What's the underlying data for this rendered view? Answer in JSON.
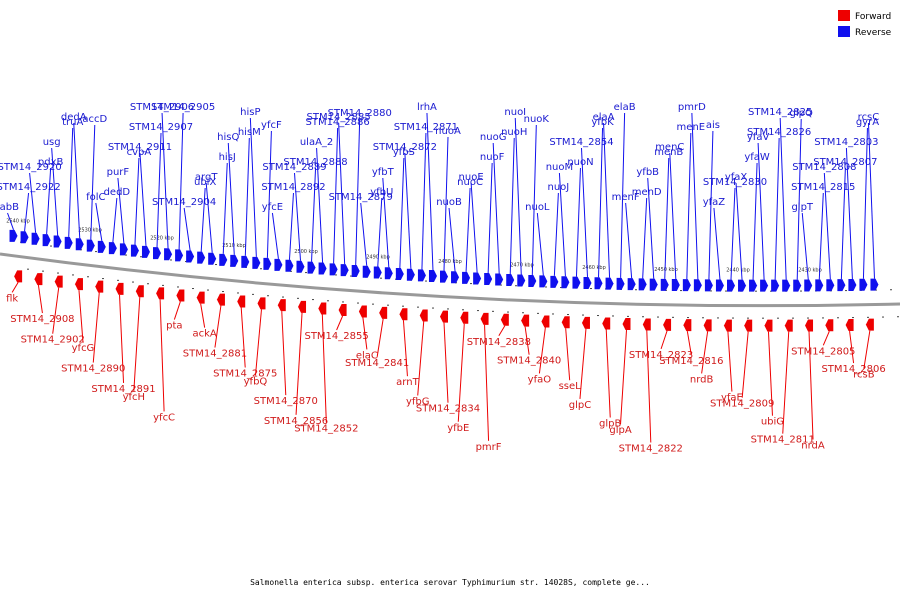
{
  "legend": [
    {
      "label": "Forward",
      "color": "#ee0000"
    },
    {
      "label": "Reverse",
      "color": "#1010ee"
    }
  ],
  "caption": "Salmonella enterica subsp. enterica serovar Typhimurium str. 14028S, complete ge...",
  "ticks": [
    "2540 kbp",
    "2530 kbp",
    "2520 kbp",
    "2510 kbp",
    "2500 kbp",
    "2490 kbp",
    "2480 kbp",
    "2470 kbp",
    "2460 kbp",
    "2450 kbp",
    "2440 kbp",
    "2430 kbp"
  ],
  "reverse_labels": [
    "fabB",
    "STM14_2922",
    "STM14_2920",
    "pdxB",
    "usg",
    "truA",
    "dedA",
    "accD",
    "folC",
    "dedD",
    "purF",
    "cvpA",
    "STM14_2911",
    "STM14_2907",
    "STM14_2906",
    "STM14_2905",
    "STM14_2904",
    "ubiX",
    "argT",
    "hisJ",
    "hisQ",
    "hisM",
    "hisP",
    "yfcF",
    "yfcE",
    "STM14_2892",
    "STM14_2889",
    "STM14_2888",
    "ulaA_2",
    "STM14_2886",
    "STM14_2885",
    "STM14_2880",
    "STM14_2879",
    "yfbU",
    "yfbT",
    "yfbS",
    "STM14_2872",
    "STM14_2871",
    "lrhA",
    "nuoA",
    "nuoB",
    "nuoC",
    "nuoE",
    "nuoF",
    "nuoG",
    "nuoH",
    "nuoI",
    "nuoK",
    "nuoL",
    "nuoJ",
    "nuoM",
    "nuoN",
    "STM14_2854",
    "yfbK",
    "elaA",
    "elaB",
    "menF",
    "menD",
    "yfbB",
    "menB",
    "menC",
    "menE",
    "pmrD",
    "ais",
    "yfaZ",
    "STM14_2830",
    "yfaX",
    "yfaW",
    "yfaV",
    "STM14_2826",
    "STM14_2825",
    "glpQ",
    "glpT",
    "STM14_2815",
    "STM14_2808",
    "STM14_2807",
    "STM14_2803",
    "gyrA",
    "rcsC"
  ],
  "forward_labels": [
    "flk",
    "STM14_2908",
    "STM14_2902",
    "yfcG",
    "STM14_2890",
    "STM14_2891",
    "yfcH",
    "yfcC",
    "pta",
    "ackA",
    "STM14_2881",
    "STM14_2875",
    "yfbQ",
    "STM14_2870",
    "STM14_2856",
    "STM14_2852",
    "STM14_2855",
    "elaC",
    "STM14_2841",
    "arnT",
    "yfbG",
    "STM14_2834",
    "yfbE",
    "pmrF",
    "STM14_2838",
    "STM14_2840",
    "yfaO",
    "sseL",
    "glpC",
    "glpB",
    "glpA",
    "STM14_2822",
    "STM14_2823",
    "STM14_2816",
    "nrdB",
    "yfaE",
    "STM14_2809",
    "ubiG",
    "STM14_2811",
    "nrdA",
    "STM14_2805",
    "STM14_2806",
    "rcsB"
  ]
}
